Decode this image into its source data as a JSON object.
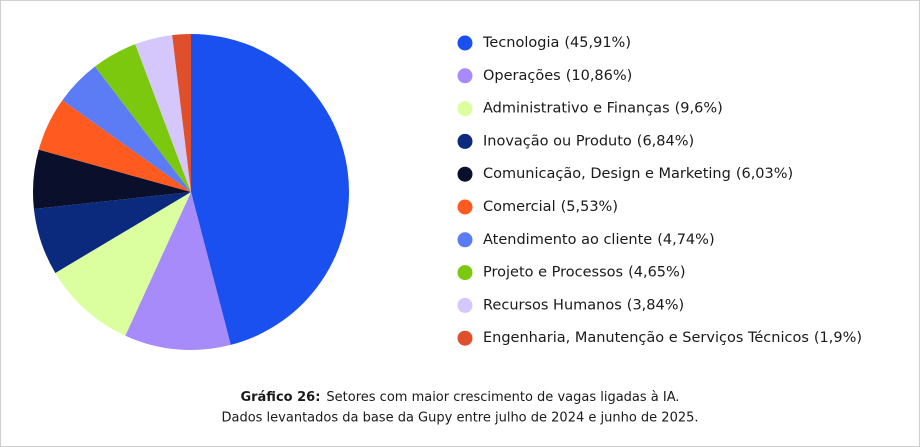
{
  "chart_data": {
    "type": "pie",
    "categories": [
      "Tecnologia",
      "Operações",
      "Administrativo e Finanças",
      "Inovação ou Produto",
      "Comunicação, Design e Marketing",
      "Comercial",
      "Atendimento ao cliente",
      "Projeto e Processos",
      "Recursos Humanos",
      "Engenharia, Manutenção e Serviços Técnicos"
    ],
    "values": [
      45.91,
      10.86,
      9.6,
      6.84,
      6.03,
      5.53,
      4.74,
      4.65,
      3.84,
      1.9
    ],
    "value_labels": [
      "(45,91%)",
      "(10,86%)",
      "(9,6%)",
      "(6,84%)",
      "(6,03%)",
      "(5,53%)",
      "(4,74%)",
      "(4,65%)",
      "(3,84%)",
      "(1,9%)"
    ],
    "colors": [
      "#1a4ff0",
      "#a78bfa",
      "#dbff9e",
      "#0b2a7d",
      "#0a0f2b",
      "#ff5a1f",
      "#5b7cf5",
      "#7cc80e",
      "#d5c7fb",
      "#df4f2c"
    ],
    "caption_label": "Gráfico 26:",
    "caption": [
      "Setores com maior crescimento de vagas ligadas à IA.",
      "Dados levantados da base da Gupy entre julho de 2024 e junho de 2025."
    ]
  }
}
